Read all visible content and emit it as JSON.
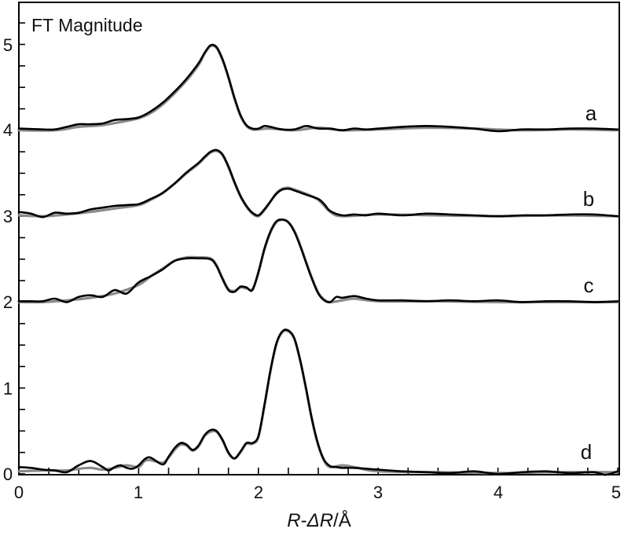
{
  "chart_data": {
    "type": "line",
    "title": "",
    "xlabel": "R-ΔR/Å",
    "ylabel": "FT Magnitude",
    "xlim": [
      0,
      5
    ],
    "ylim": [
      0,
      5.35
    ],
    "xticks": [
      0,
      1,
      2,
      3,
      4,
      5
    ],
    "xtick_labels": [
      "0",
      "1",
      "2",
      "3",
      "4",
      "5"
    ],
    "yticks": [
      0,
      1,
      2,
      3,
      4,
      5
    ],
    "ytick_labels": [
      "0",
      "1",
      "2",
      "3",
      "4",
      "5"
    ],
    "minor_tick_step": 0.25,
    "grid": false,
    "legend": null,
    "annotations": [
      "a",
      "b",
      "c",
      "d"
    ],
    "colors": {
      "experiment": "#000000",
      "fit": "#8a8a8a",
      "axis": "#000000"
    },
    "series": [
      {
        "name": "a (experiment)",
        "label": "a",
        "offset": 4,
        "role": "experiment",
        "x": [
          0,
          0.2,
          0.3,
          0.4,
          0.5,
          0.6,
          0.7,
          0.8,
          0.9,
          1.0,
          1.1,
          1.2,
          1.3,
          1.4,
          1.5,
          1.55,
          1.6,
          1.65,
          1.7,
          1.75,
          1.8,
          1.85,
          1.9,
          1.95,
          2.0,
          2.05,
          2.1,
          2.2,
          2.3,
          2.4,
          2.5,
          2.6,
          2.7,
          2.8,
          2.9,
          3.0,
          3.2,
          3.4,
          3.6,
          3.8,
          4.0,
          4.2,
          4.4,
          4.6,
          4.8,
          5.0
        ],
        "y": [
          4.02,
          4.01,
          4.01,
          4.04,
          4.07,
          4.07,
          4.08,
          4.12,
          4.13,
          4.15,
          4.22,
          4.32,
          4.45,
          4.6,
          4.78,
          4.9,
          4.99,
          4.97,
          4.83,
          4.62,
          4.38,
          4.18,
          4.06,
          4.02,
          4.02,
          4.05,
          4.04,
          4.01,
          4.01,
          4.05,
          4.02,
          4.02,
          4.0,
          4.02,
          4.01,
          4.02,
          4.04,
          4.05,
          4.04,
          4.02,
          3.99,
          4.01,
          4.01,
          4.02,
          4.02,
          4.01
        ]
      },
      {
        "name": "a (fit)",
        "label": "a",
        "offset": 4,
        "role": "fit",
        "x": [
          0,
          0.3,
          0.5,
          0.7,
          0.9,
          1.0,
          1.1,
          1.2,
          1.3,
          1.4,
          1.5,
          1.55,
          1.6,
          1.65,
          1.7,
          1.75,
          1.8,
          1.85,
          1.9,
          1.95,
          2.0,
          2.1,
          2.3,
          2.5,
          2.7,
          3.0,
          3.4,
          3.8,
          4.2,
          4.6,
          5.0
        ],
        "y": [
          4.0,
          4.0,
          4.04,
          4.06,
          4.11,
          4.14,
          4.2,
          4.3,
          4.43,
          4.58,
          4.76,
          4.89,
          4.98,
          4.96,
          4.82,
          4.61,
          4.37,
          4.17,
          4.05,
          4.01,
          4.01,
          4.02,
          4.0,
          4.03,
          4.0,
          4.01,
          4.03,
          4.02,
          4.0,
          4.01,
          4.0
        ]
      },
      {
        "name": "b (experiment)",
        "label": "b",
        "offset": 3,
        "role": "experiment",
        "x": [
          0,
          0.1,
          0.2,
          0.3,
          0.4,
          0.5,
          0.6,
          0.7,
          0.8,
          0.9,
          1.0,
          1.1,
          1.2,
          1.3,
          1.4,
          1.5,
          1.55,
          1.6,
          1.65,
          1.7,
          1.75,
          1.8,
          1.85,
          1.9,
          1.95,
          2.0,
          2.05,
          2.1,
          2.15,
          2.2,
          2.25,
          2.3,
          2.4,
          2.5,
          2.55,
          2.6,
          2.7,
          2.8,
          2.9,
          3.0,
          3.2,
          3.4,
          3.6,
          3.8,
          4.0,
          4.2,
          4.4,
          4.6,
          4.8,
          5.0
        ],
        "y": [
          3.05,
          3.03,
          2.99,
          3.04,
          3.03,
          3.04,
          3.08,
          3.1,
          3.12,
          3.13,
          3.14,
          3.2,
          3.27,
          3.38,
          3.51,
          3.62,
          3.69,
          3.75,
          3.77,
          3.72,
          3.58,
          3.4,
          3.24,
          3.12,
          3.04,
          3.01,
          3.08,
          3.17,
          3.26,
          3.31,
          3.32,
          3.3,
          3.25,
          3.2,
          3.14,
          3.06,
          3.01,
          3.02,
          3.01,
          3.03,
          3.01,
          3.03,
          3.02,
          3.01,
          3.0,
          3.01,
          3.01,
          3.02,
          3.02,
          3.0
        ]
      },
      {
        "name": "b (fit)",
        "label": "b",
        "offset": 3,
        "role": "fit",
        "x": [
          0,
          0.2,
          0.4,
          0.6,
          0.8,
          1.0,
          1.1,
          1.2,
          1.3,
          1.4,
          1.5,
          1.55,
          1.6,
          1.65,
          1.7,
          1.75,
          1.8,
          1.85,
          1.9,
          1.95,
          2.0,
          2.05,
          2.1,
          2.15,
          2.2,
          2.25,
          2.3,
          2.4,
          2.5,
          2.6,
          2.7,
          3.0,
          3.5,
          4.0,
          4.5,
          5.0
        ],
        "y": [
          3.01,
          3.0,
          3.02,
          3.05,
          3.09,
          3.13,
          3.19,
          3.27,
          3.38,
          3.5,
          3.61,
          3.68,
          3.74,
          3.76,
          3.71,
          3.57,
          3.39,
          3.23,
          3.11,
          3.03,
          3.0,
          3.07,
          3.17,
          3.27,
          3.32,
          3.33,
          3.31,
          3.26,
          3.19,
          3.05,
          3.0,
          3.02,
          3.01,
          3.0,
          3.01,
          3.0
        ]
      },
      {
        "name": "c (experiment)",
        "label": "c",
        "offset": 2,
        "role": "experiment",
        "x": [
          0,
          0.1,
          0.2,
          0.3,
          0.4,
          0.5,
          0.6,
          0.7,
          0.8,
          0.9,
          1.0,
          1.1,
          1.2,
          1.3,
          1.4,
          1.5,
          1.6,
          1.65,
          1.7,
          1.75,
          1.8,
          1.85,
          1.9,
          1.95,
          2.0,
          2.05,
          2.1,
          2.15,
          2.2,
          2.25,
          2.3,
          2.35,
          2.4,
          2.45,
          2.5,
          2.55,
          2.6,
          2.65,
          2.7,
          2.8,
          2.9,
          3.0,
          3.2,
          3.4,
          3.6,
          3.8,
          4.0,
          4.2,
          4.4,
          4.6,
          4.8,
          5.0
        ],
        "y": [
          2.01,
          2.01,
          2.01,
          2.04,
          2.0,
          2.06,
          2.08,
          2.06,
          2.14,
          2.1,
          2.23,
          2.3,
          2.38,
          2.48,
          2.51,
          2.51,
          2.5,
          2.42,
          2.27,
          2.14,
          2.12,
          2.18,
          2.17,
          2.14,
          2.35,
          2.62,
          2.82,
          2.94,
          2.96,
          2.93,
          2.82,
          2.65,
          2.45,
          2.26,
          2.1,
          2.02,
          2.0,
          2.06,
          2.05,
          2.07,
          2.04,
          2.02,
          2.02,
          2.01,
          2.02,
          2.01,
          2.02,
          2.0,
          2.01,
          2.01,
          2.0,
          2.01
        ]
      },
      {
        "name": "c (fit)",
        "label": "c",
        "offset": 2,
        "role": "fit",
        "x": [
          0,
          0.2,
          0.4,
          0.6,
          0.8,
          1.0,
          1.1,
          1.2,
          1.3,
          1.4,
          1.5,
          1.6,
          1.65,
          1.7,
          1.75,
          1.8,
          1.85,
          1.9,
          1.95,
          2.0,
          2.05,
          2.1,
          2.15,
          2.2,
          2.25,
          2.3,
          2.35,
          2.4,
          2.45,
          2.5,
          2.55,
          2.6,
          2.7,
          2.8,
          3.0,
          3.5,
          4.0,
          4.5,
          5.0
        ],
        "y": [
          2.0,
          2.0,
          2.02,
          2.05,
          2.1,
          2.2,
          2.3,
          2.39,
          2.48,
          2.52,
          2.52,
          2.51,
          2.43,
          2.28,
          2.15,
          2.13,
          2.17,
          2.16,
          2.15,
          2.34,
          2.61,
          2.81,
          2.93,
          2.96,
          2.93,
          2.83,
          2.66,
          2.46,
          2.27,
          2.11,
          2.03,
          2.0,
          2.02,
          2.04,
          2.01,
          2.01,
          2.0,
          2.0,
          2.0
        ]
      },
      {
        "name": "d (experiment)",
        "label": "d",
        "offset": 0,
        "role": "experiment",
        "x": [
          0,
          0.1,
          0.2,
          0.3,
          0.4,
          0.5,
          0.6,
          0.7,
          0.75,
          0.8,
          0.85,
          0.9,
          0.95,
          1.0,
          1.05,
          1.1,
          1.2,
          1.25,
          1.3,
          1.35,
          1.4,
          1.45,
          1.5,
          1.55,
          1.6,
          1.65,
          1.7,
          1.75,
          1.8,
          1.85,
          1.9,
          1.95,
          2.0,
          2.05,
          2.1,
          2.15,
          2.2,
          2.25,
          2.3,
          2.35,
          2.4,
          2.45,
          2.5,
          2.55,
          2.6,
          2.65,
          2.7,
          2.8,
          3.0,
          3.2,
          3.4,
          3.6,
          3.8,
          4.0,
          4.2,
          4.4,
          4.6,
          4.8,
          4.9,
          5.0
        ],
        "y": [
          0.08,
          0.07,
          0.05,
          0.04,
          0.02,
          0.1,
          0.15,
          0.08,
          0.04,
          0.08,
          0.1,
          0.07,
          0.06,
          0.1,
          0.17,
          0.19,
          0.11,
          0.2,
          0.3,
          0.36,
          0.34,
          0.28,
          0.33,
          0.45,
          0.51,
          0.5,
          0.4,
          0.25,
          0.18,
          0.26,
          0.36,
          0.36,
          0.44,
          0.8,
          1.2,
          1.52,
          1.66,
          1.67,
          1.58,
          1.32,
          0.98,
          0.62,
          0.34,
          0.16,
          0.09,
          0.08,
          0.07,
          0.07,
          0.05,
          0.03,
          0.02,
          0.01,
          0.03,
          0.0,
          0.02,
          0.03,
          0.01,
          0.02,
          -0.01,
          0.03
        ]
      },
      {
        "name": "d (fit)",
        "label": "d",
        "offset": 0,
        "role": "fit",
        "x": [
          0,
          0.2,
          0.4,
          0.5,
          0.6,
          0.7,
          0.8,
          0.9,
          1.0,
          1.05,
          1.1,
          1.2,
          1.25,
          1.3,
          1.35,
          1.4,
          1.45,
          1.5,
          1.55,
          1.6,
          1.65,
          1.7,
          1.75,
          1.8,
          1.85,
          1.9,
          1.95,
          2.0,
          2.05,
          2.1,
          2.15,
          2.2,
          2.25,
          2.3,
          2.35,
          2.4,
          2.45,
          2.5,
          2.55,
          2.6,
          2.7,
          2.8,
          3.0,
          3.5,
          4.0,
          4.5,
          5.0
        ],
        "y": [
          0.03,
          0.04,
          0.04,
          0.06,
          0.07,
          0.05,
          0.07,
          0.1,
          0.08,
          0.15,
          0.16,
          0.13,
          0.19,
          0.28,
          0.34,
          0.33,
          0.27,
          0.32,
          0.44,
          0.49,
          0.49,
          0.39,
          0.24,
          0.18,
          0.25,
          0.35,
          0.35,
          0.43,
          0.79,
          1.19,
          1.51,
          1.65,
          1.66,
          1.57,
          1.31,
          0.97,
          0.61,
          0.33,
          0.15,
          0.08,
          0.1,
          0.08,
          0.03,
          0.02,
          0.01,
          0.02,
          0.02
        ]
      }
    ]
  },
  "labels": {
    "y_inside": "FT Magnitude",
    "x_axis": "R-ΔR/Å",
    "x_axis_parts": {
      "r1": "R",
      "dash": "-",
      "delta_r": "ΔR",
      "unit": "/Å"
    },
    "curve_a": "a",
    "curve_b": "b",
    "curve_c": "c",
    "curve_d": "d",
    "xticks": [
      "0",
      "1",
      "2",
      "3",
      "4",
      "5"
    ],
    "yticks": [
      "0",
      "1",
      "2",
      "3",
      "4",
      "5"
    ]
  }
}
